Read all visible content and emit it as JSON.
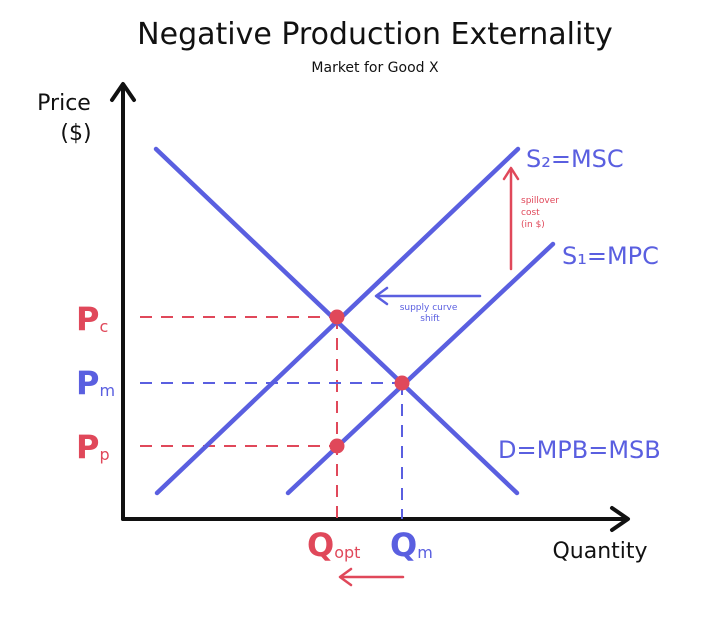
{
  "title": "Negative Production Externality",
  "subtitle": "Market for Good X",
  "y_axis_label_line1": "Price",
  "y_axis_label_line2": "($)",
  "x_axis_label": "Quantity",
  "curves": {
    "s2_label": "S₂=MSC",
    "s1_label": "S₁=MPC",
    "demand_label": "D=MPB=MSB"
  },
  "price_labels": {
    "pc_main": "P",
    "pc_sub": "c",
    "pm_main": "P",
    "pm_sub": "m",
    "pp_main": "P",
    "pp_sub": "p"
  },
  "quantity_labels": {
    "qopt_main": "Q",
    "qopt_sub": "opt",
    "qm_main": "Q",
    "qm_sub": "m"
  },
  "annotations": {
    "spillover_line1": "spillover",
    "spillover_line2": "cost",
    "spillover_line3": "(in $)",
    "shift_line1": "supply curve",
    "shift_line2": "shift"
  },
  "colors": {
    "curve": "#5a5fe0",
    "red": "#e0485a",
    "axis": "#111111"
  }
}
